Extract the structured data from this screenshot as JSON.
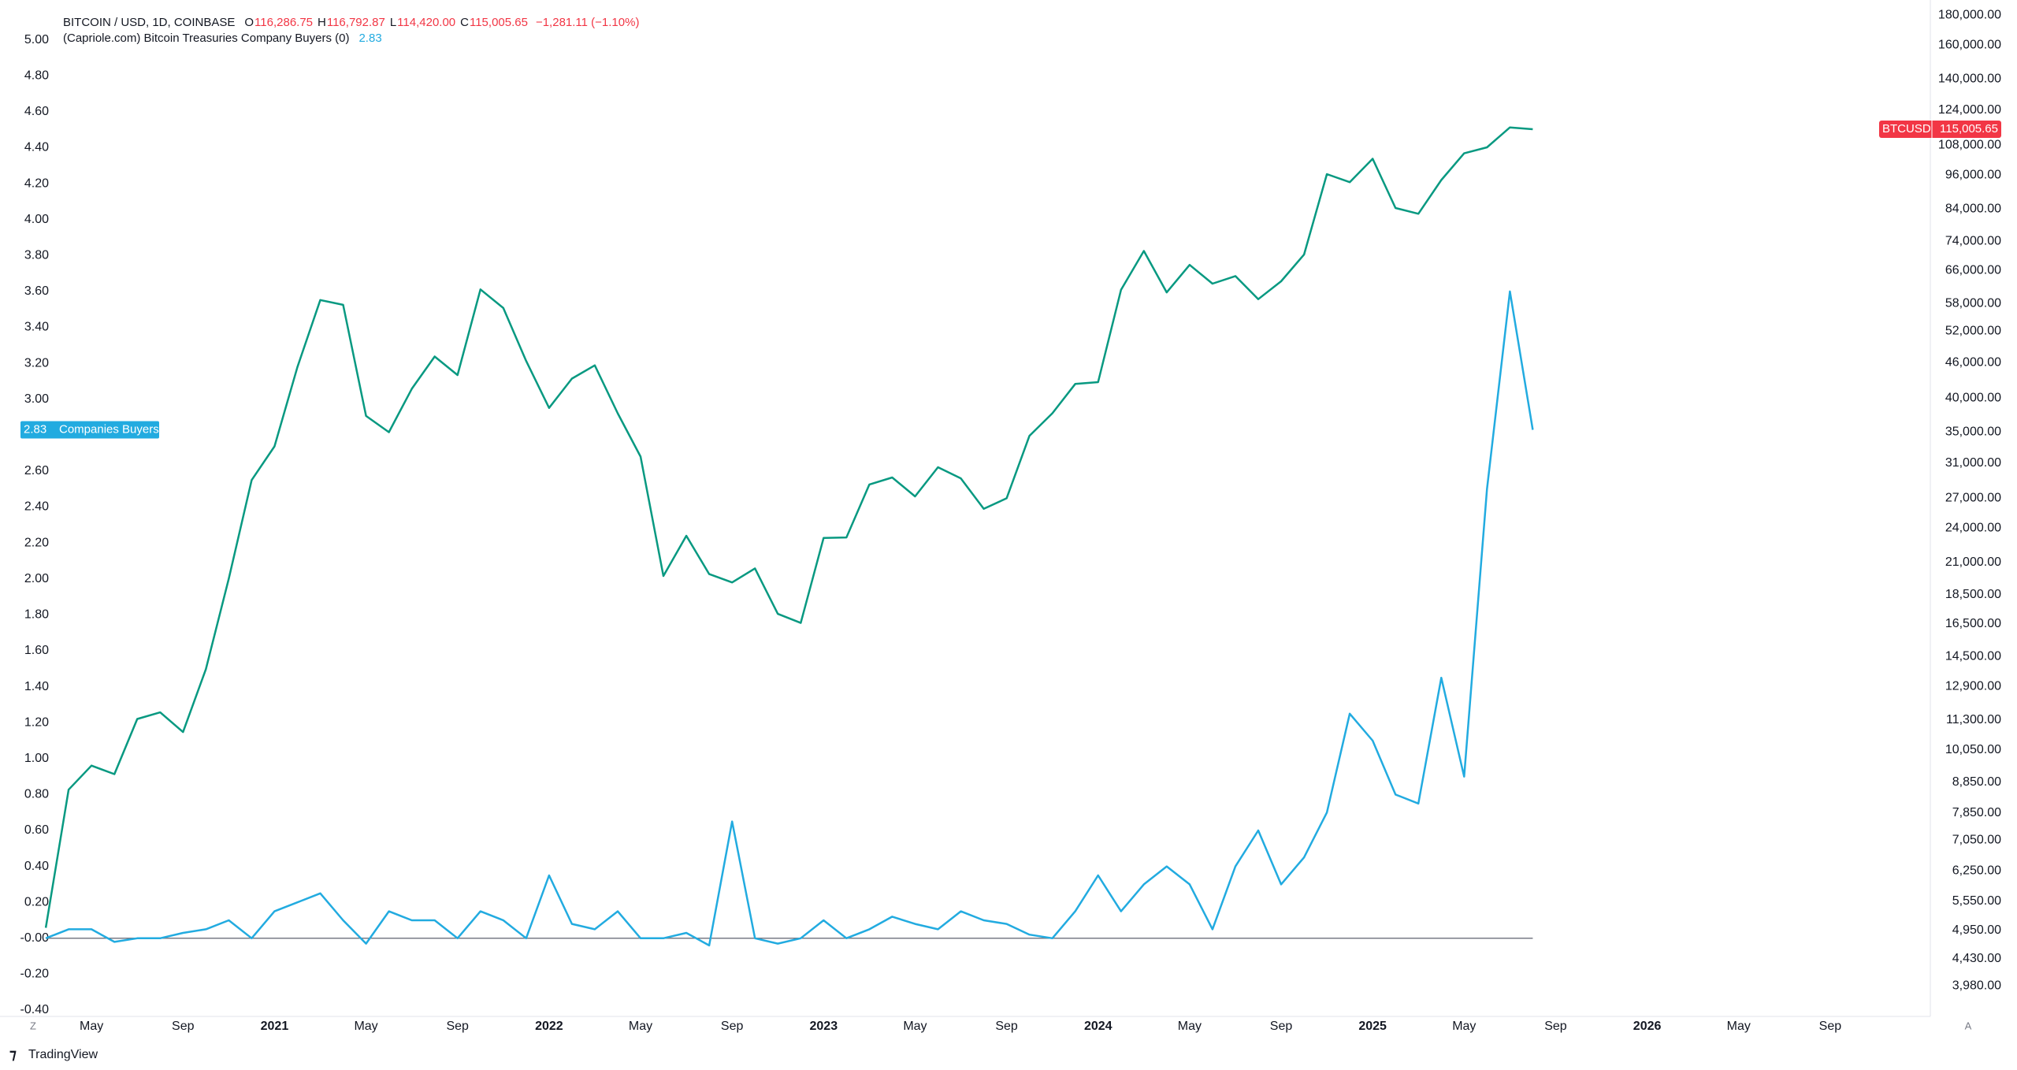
{
  "chart_data": {
    "type": "line",
    "symbol": "BITCOIN / USD, 1D, COINBASE",
    "ohlc": [
      [
        "O",
        "116,286.75"
      ],
      [
        "H",
        "116,792.87"
      ],
      [
        "L",
        "114,420.00"
      ],
      [
        "C",
        "115,005.65"
      ]
    ],
    "change": "−1,281.11 (−1.10%)",
    "indicator_title": "(Capriole.com) Bitcoin Treasuries Company Buyers (0)",
    "price_label": "115,005.65",
    "x": [
      "2020-03",
      "2020-04",
      "2020-05",
      "2020-06",
      "2020-07",
      "2020-08",
      "2020-09",
      "2020-10",
      "2020-11",
      "2020-12",
      "2021-01",
      "2021-02",
      "2021-03",
      "2021-04",
      "2021-05",
      "2021-06",
      "2021-07",
      "2021-08",
      "2021-09",
      "2021-10",
      "2021-11",
      "2021-12",
      "2022-01",
      "2022-02",
      "2022-03",
      "2022-04",
      "2022-05",
      "2022-06",
      "2022-07",
      "2022-08",
      "2022-09",
      "2022-10",
      "2022-11",
      "2022-12",
      "2023-01",
      "2023-02",
      "2023-03",
      "2023-04",
      "2023-05",
      "2023-06",
      "2023-07",
      "2023-08",
      "2023-09",
      "2023-10",
      "2023-11",
      "2023-12",
      "2024-01",
      "2024-02",
      "2024-03",
      "2024-04",
      "2024-05",
      "2024-06",
      "2024-07",
      "2024-08",
      "2024-09",
      "2024-10",
      "2024-11",
      "2024-12",
      "2025-01",
      "2025-02",
      "2025-03",
      "2025-04",
      "2025-05",
      "2025-06",
      "2025-07",
      "2025-08"
    ],
    "series": [
      {
        "name": "BTCUSD",
        "color": "#089981",
        "axis": "y2",
        "values": [
          5000,
          8600,
          9450,
          9140,
          11350,
          11650,
          10780,
          13800,
          19700,
          29000,
          33100,
          45200,
          58800,
          57700,
          37300,
          35000,
          41500,
          47100,
          43800,
          61300,
          57000,
          46300,
          38500,
          43200,
          45500,
          37700,
          31800,
          19900,
          23300,
          20050,
          19400,
          20500,
          17150,
          16550,
          23100,
          23150,
          28500,
          29300,
          27200,
          30500,
          29200,
          25900,
          27000,
          34500,
          37700,
          42300,
          42600,
          61200,
          71300,
          60600,
          67500,
          62700,
          64600,
          59000,
          63300,
          70300,
          96400,
          93400,
          102400,
          84400,
          82500,
          94200,
          104600,
          107100,
          115800,
          115005.65
        ]
      },
      {
        "name": "Companies Buyers",
        "color": "#22abe0",
        "values": [
          0,
          0.05,
          0.05,
          -0.02,
          0,
          0,
          0.03,
          0.05,
          0.1,
          0,
          0.15,
          0.2,
          0.25,
          0.1,
          -0.03,
          0.15,
          0.1,
          0.1,
          0,
          0.15,
          0.1,
          0,
          0.35,
          0.08,
          0.05,
          0.15,
          0,
          0,
          0.03,
          -0.04,
          0.65,
          0,
          -0.03,
          0,
          0.1,
          0,
          0.05,
          0.12,
          0.08,
          0.05,
          0.15,
          0.1,
          0.08,
          0.02,
          0,
          0.15,
          0.35,
          0.15,
          0.3,
          0.4,
          0.3,
          0.05,
          0.4,
          0.6,
          0.3,
          0.45,
          0.7,
          1.25,
          1.1,
          0.8,
          0.75,
          1.45,
          0.9,
          2.5,
          3.6,
          2.83
        ]
      }
    ],
    "xlim": [
      "2020-01",
      "2026-12"
    ],
    "xticks": [
      {
        "value": "2020-05",
        "label": "May"
      },
      {
        "value": "2020-09",
        "label": "Sep"
      },
      {
        "value": "2021-01",
        "label": "2021"
      },
      {
        "value": "2021-05",
        "label": "May"
      },
      {
        "value": "2021-09",
        "label": "Sep"
      },
      {
        "value": "2022-01",
        "label": "2022"
      },
      {
        "value": "2022-05",
        "label": "May"
      },
      {
        "value": "2022-09",
        "label": "Sep"
      },
      {
        "value": "2023-01",
        "label": "2023"
      },
      {
        "value": "2023-05",
        "label": "May"
      },
      {
        "value": "2023-09",
        "label": "Sep"
      },
      {
        "value": "2024-01",
        "label": "2024"
      },
      {
        "value": "2024-05",
        "label": "May"
      },
      {
        "value": "2024-09",
        "label": "Sep"
      },
      {
        "value": "2025-01",
        "label": "2025"
      },
      {
        "value": "2025-05",
        "label": "May"
      },
      {
        "value": "2025-09",
        "label": "Sep"
      },
      {
        "value": "2026-01",
        "label": "2026"
      },
      {
        "value": "2026-05",
        "label": "May"
      },
      {
        "value": "2026-09",
        "label": "Sep"
      }
    ],
    "ylim": [
      -0.435,
      5.222
    ],
    "yticks": [
      {
        "value": 5,
        "label": "5.00"
      },
      {
        "value": 4.8,
        "label": "4.80"
      },
      {
        "value": 4.6,
        "label": "4.60"
      },
      {
        "value": 4.4,
        "label": "4.40"
      },
      {
        "value": 4.2,
        "label": "4.20"
      },
      {
        "value": 4,
        "label": "4.00"
      },
      {
        "value": 3.8,
        "label": "3.80"
      },
      {
        "value": 3.6,
        "label": "3.60"
      },
      {
        "value": 3.4,
        "label": "3.40"
      },
      {
        "value": 3.2,
        "label": "3.20"
      },
      {
        "value": 3,
        "label": "3.00"
      },
      {
        "value": 2.6,
        "label": "2.60"
      },
      {
        "value": 2.4,
        "label": "2.40"
      },
      {
        "value": 2.2,
        "label": "2.20"
      },
      {
        "value": 2,
        "label": "2.00"
      },
      {
        "value": 1.8,
        "label": "1.80"
      },
      {
        "value": 1.6,
        "label": "1.60"
      },
      {
        "value": 1.4,
        "label": "1.40"
      },
      {
        "value": 1.2,
        "label": "1.20"
      },
      {
        "value": 1,
        "label": "1.00"
      },
      {
        "value": 0.8,
        "label": "0.80"
      },
      {
        "value": 0.6,
        "label": "0.60"
      },
      {
        "value": 0.4,
        "label": "0.40"
      },
      {
        "value": 0.2,
        "label": "0.20"
      },
      {
        "value": 0,
        "label": "-0.00"
      },
      {
        "value": -0.2,
        "label": "-0.20"
      },
      {
        "value": -0.4,
        "label": "-0.40"
      }
    ],
    "y2lim": [
      3530,
      191000
    ],
    "y2log": true,
    "y2ticks": [
      {
        "value": 180000,
        "label": "180,000.00"
      },
      {
        "value": 160000,
        "label": "160,000.00"
      },
      {
        "value": 140000,
        "label": "140,000.00"
      },
      {
        "value": 124000,
        "label": "124,000.00"
      },
      {
        "value": 108000,
        "label": "108,000.00"
      },
      {
        "value": 96000,
        "label": "96,000.00"
      },
      {
        "value": 84000,
        "label": "84,000.00"
      },
      {
        "value": 74000,
        "label": "74,000.00"
      },
      {
        "value": 66000,
        "label": "66,000.00"
      },
      {
        "value": 58000,
        "label": "58,000.00"
      },
      {
        "value": 52000,
        "label": "52,000.00"
      },
      {
        "value": 46000,
        "label": "46,000.00"
      },
      {
        "value": 40000,
        "label": "40,000.00"
      },
      {
        "value": 35000,
        "label": "35,000.00"
      },
      {
        "value": 31000,
        "label": "31,000.00"
      },
      {
        "value": 27000,
        "label": "27,000.00"
      },
      {
        "value": 24000,
        "label": "24,000.00"
      },
      {
        "value": 21000,
        "label": "21,000.00"
      },
      {
        "value": 18500,
        "label": "18,500.00"
      },
      {
        "value": 16500,
        "label": "16,500.00"
      },
      {
        "value": 14500,
        "label": "14,500.00"
      },
      {
        "value": 12900,
        "label": "12,900.00"
      },
      {
        "value": 11300,
        "label": "11,300.00"
      },
      {
        "value": 10050,
        "label": "10,050.00"
      },
      {
        "value": 8850,
        "label": "8,850.00"
      },
      {
        "value": 7850,
        "label": "7,850.00"
      },
      {
        "value": 7050,
        "label": "7,050.00"
      },
      {
        "value": 6250,
        "label": "6,250.00"
      },
      {
        "value": 5550,
        "label": "5,550.00"
      },
      {
        "value": 4950,
        "label": "4,950.00"
      },
      {
        "value": 4430,
        "label": "4,430.00"
      },
      {
        "value": 3980,
        "label": "3,980.00"
      }
    ],
    "zero_line": true,
    "grid": false
  },
  "ui": {
    "zoom_button": "Z",
    "auto_button": "A",
    "brand": "TradingView"
  }
}
